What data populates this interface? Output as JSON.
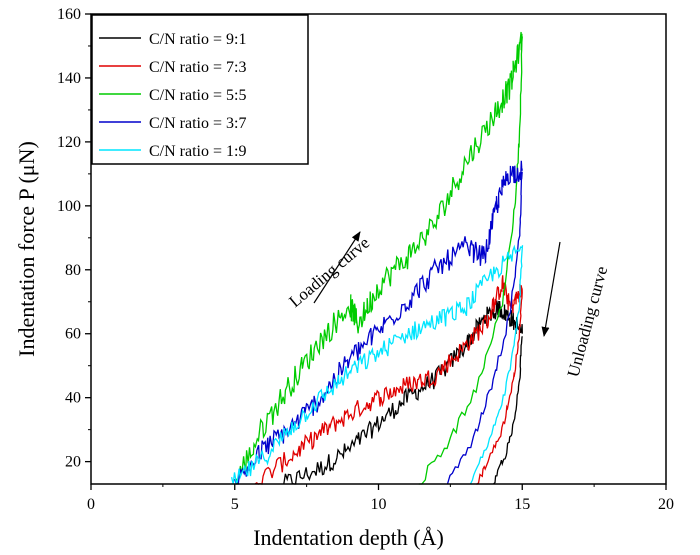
{
  "chart_data": {
    "type": "line",
    "title": "",
    "xlabel": "Indentation depth (Å)",
    "ylabel": "Indentation force P (μN)",
    "xlim": [
      0,
      20
    ],
    "ylim": [
      13,
      160
    ],
    "x_ticks": [
      0,
      5,
      10,
      15,
      20
    ],
    "x_tick_labels": [
      "0",
      "5",
      "10",
      "15",
      "20"
    ],
    "y_ticks": [
      20,
      40,
      60,
      80,
      100,
      120,
      140,
      160
    ],
    "y_tick_labels": [
      "20",
      "40",
      "60",
      "80",
      "100",
      "120",
      "140",
      "160"
    ],
    "grid": false,
    "legend_position": "top-left",
    "series": [
      {
        "name": "C/N ratio = 9:1",
        "color": "#000000",
        "noise": 3,
        "loading": [
          [
            6.7,
            13
          ],
          [
            8,
            18
          ],
          [
            9,
            24
          ],
          [
            10,
            32
          ],
          [
            11,
            40
          ],
          [
            12,
            46
          ],
          [
            13,
            56
          ],
          [
            13.7,
            65
          ],
          [
            14.2,
            68
          ],
          [
            14.6,
            65
          ],
          [
            15,
            60
          ]
        ],
        "unloading": [
          [
            15,
            60
          ],
          [
            14.9,
            45
          ],
          [
            14.7,
            32
          ],
          [
            14.4,
            22
          ],
          [
            14.0,
            13
          ]
        ]
      },
      {
        "name": "C/N ratio = 7:3",
        "color": "#e00000",
        "noise": 3,
        "loading": [
          [
            5.7,
            13
          ],
          [
            7,
            22
          ],
          [
            8,
            29
          ],
          [
            9,
            35
          ],
          [
            10,
            40
          ],
          [
            11,
            44
          ],
          [
            12,
            47
          ],
          [
            13,
            56
          ],
          [
            13.8,
            64
          ],
          [
            14.3,
            76
          ],
          [
            14.6,
            68
          ],
          [
            15,
            74
          ]
        ],
        "unloading": [
          [
            15,
            74
          ],
          [
            14.9,
            60
          ],
          [
            14.7,
            45
          ],
          [
            14.3,
            30
          ],
          [
            13.8,
            20
          ],
          [
            13.4,
            13
          ]
        ]
      },
      {
        "name": "C/N ratio = 5:5",
        "color": "#00cc00",
        "noise": 4,
        "loading": [
          [
            5,
            13
          ],
          [
            6,
            31
          ],
          [
            7,
            45
          ],
          [
            8,
            58
          ],
          [
            9,
            69
          ],
          [
            9.3,
            63
          ],
          [
            10,
            75
          ],
          [
            11,
            84
          ],
          [
            12,
            95
          ],
          [
            13,
            113
          ],
          [
            14,
            128
          ],
          [
            14.6,
            138
          ],
          [
            15,
            153
          ]
        ],
        "unloading": [
          [
            15,
            153
          ],
          [
            14.9,
            120
          ],
          [
            14.7,
            95
          ],
          [
            14.3,
            70
          ],
          [
            13.5,
            45
          ],
          [
            12.5,
            27
          ],
          [
            11.4,
            13
          ]
        ]
      },
      {
        "name": "C/N ratio = 3:7",
        "color": "#0000cc",
        "noise": 3.5,
        "loading": [
          [
            5,
            13
          ],
          [
            6,
            24
          ],
          [
            7,
            31
          ],
          [
            8,
            40
          ],
          [
            9,
            52
          ],
          [
            10,
            61
          ],
          [
            11,
            70
          ],
          [
            12,
            80
          ],
          [
            13,
            87
          ],
          [
            13.7,
            84
          ],
          [
            14.1,
            100
          ],
          [
            14.5,
            110
          ],
          [
            15,
            111
          ]
        ],
        "unloading": [
          [
            15,
            111
          ],
          [
            14.9,
            90
          ],
          [
            14.6,
            68
          ],
          [
            14.0,
            45
          ],
          [
            13.3,
            27
          ],
          [
            12.4,
            13
          ]
        ]
      },
      {
        "name": "C/N ratio = 1:9",
        "color": "#00e5ff",
        "noise": 3,
        "loading": [
          [
            4.9,
            13
          ],
          [
            6,
            21
          ],
          [
            7,
            31
          ],
          [
            8,
            40
          ],
          [
            9,
            48
          ],
          [
            10,
            54
          ],
          [
            11,
            60
          ],
          [
            12,
            64
          ],
          [
            13,
            68
          ],
          [
            14,
            79
          ],
          [
            15,
            87
          ]
        ],
        "unloading": [
          [
            15,
            87
          ],
          [
            14.9,
            70
          ],
          [
            14.7,
            55
          ],
          [
            14.3,
            38
          ],
          [
            13.8,
            25
          ],
          [
            13.2,
            13
          ]
        ]
      }
    ],
    "annotations": [
      {
        "text": "Loading curve",
        "direction": "up-right"
      },
      {
        "text": "Unloading curve",
        "direction": "down"
      }
    ]
  }
}
